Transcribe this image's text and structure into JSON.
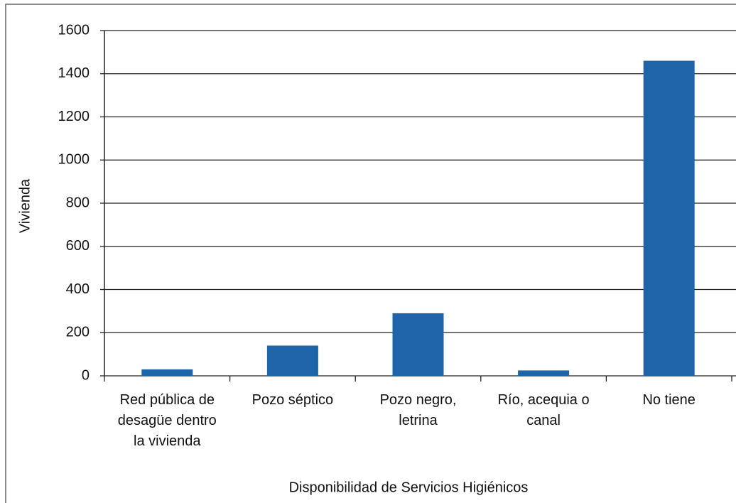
{
  "chart_data": {
    "type": "bar",
    "x_label": "Disponibilidad de Servicios Higiénicos",
    "y_label": "Vivienda",
    "categories": [
      "Red pública de desagüe dentro la vivienda",
      "Pozo séptico",
      "Pozo negro, letrina",
      "Río, acequia o canal",
      "No tiene"
    ],
    "values": [
      30,
      140,
      290,
      25,
      1460
    ],
    "color": "#1f64a8",
    "ylim": [
      0,
      1600
    ],
    "yticks": [
      0,
      200,
      400,
      600,
      800,
      1000,
      1200,
      1400,
      1600
    ],
    "grid": true
  }
}
